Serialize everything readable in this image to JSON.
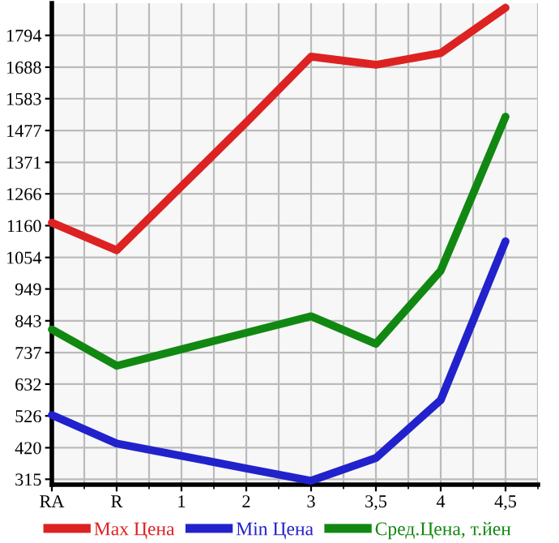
{
  "chart_data": {
    "type": "line",
    "categories": [
      "RA",
      "R",
      "1",
      "2",
      "3",
      "3,5",
      "4",
      "4,5"
    ],
    "series": [
      {
        "name": "Max Цена",
        "color": "#dd2222",
        "values": [
          1170,
          1078,
          1291,
          1504,
          1723,
          1696,
          1735,
          1886
        ]
      },
      {
        "name": "Min Цена",
        "color": "#2222cc",
        "values": [
          529,
          434,
          393,
          351,
          310,
          386,
          579,
          1108
        ]
      },
      {
        "name": "Сред.Цена, т.йен",
        "color": "#118811",
        "values": [
          814,
          693,
          748,
          803,
          858,
          766,
          1010,
          1523
        ]
      }
    ],
    "ylim": [
      297,
      1901
    ],
    "yticks": [
      315,
      420,
      526,
      632,
      737,
      843,
      949,
      1054,
      1160,
      1266,
      1371,
      1477,
      1583,
      1688,
      1794
    ],
    "grid": true,
    "legend": "bottom",
    "marker": "none",
    "line_style": "solid"
  }
}
